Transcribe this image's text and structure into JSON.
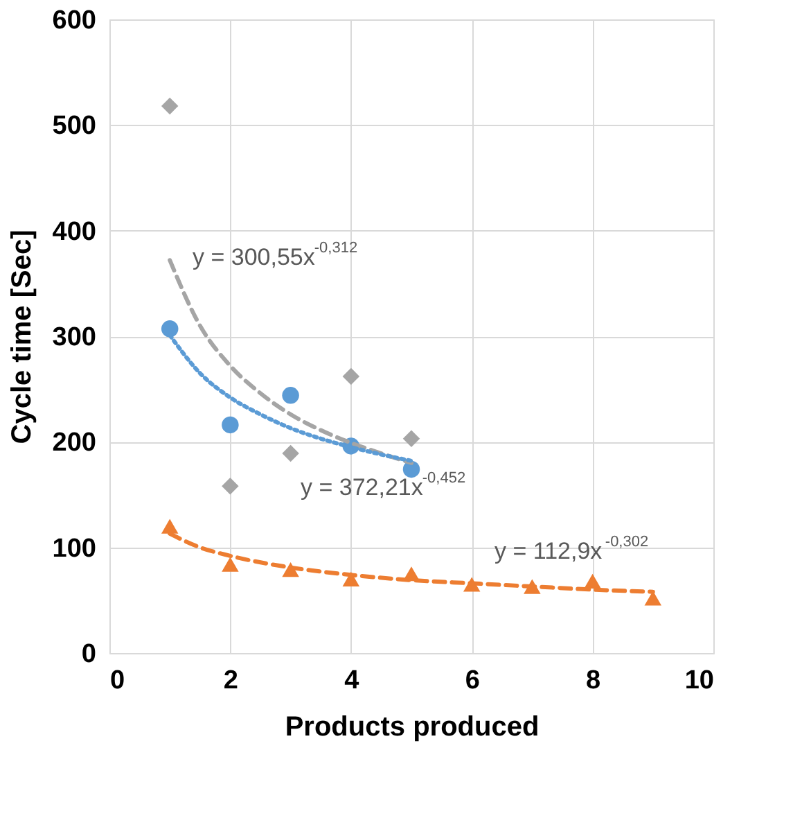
{
  "chart_data": {
    "type": "scatter",
    "xlabel": "Products produced",
    "ylabel": "Cycle time [Sec]",
    "xlim": [
      0,
      10
    ],
    "xticks": [
      0,
      2,
      4,
      6,
      8,
      10
    ],
    "ylim": [
      0,
      600
    ],
    "yticks": [
      0,
      100,
      200,
      300,
      400,
      500,
      600
    ],
    "grid": true,
    "series": [
      {
        "marker": "diamond",
        "color": "#a5a5a5",
        "x": [
          1,
          2,
          3,
          4,
          5
        ],
        "values": [
          518,
          158,
          189,
          262,
          203
        ]
      },
      {
        "marker": "circle",
        "color": "#5b9bd5",
        "x": [
          1,
          2,
          3,
          4,
          5
        ],
        "values": [
          307,
          216,
          244,
          196,
          174
        ]
      },
      {
        "marker": "triangle",
        "color": "#ed7d31",
        "x": [
          1,
          2,
          3,
          4,
          5,
          6,
          7,
          8,
          9
        ],
        "values": [
          120,
          84,
          79,
          70,
          75,
          65,
          63,
          68,
          52
        ]
      },
      {
        "type": "line",
        "line_style": "dashed",
        "color": "#a5a5a5",
        "x": [
          1,
          1.5,
          2,
          2.5,
          3,
          3.5,
          4,
          4.5,
          5
        ],
        "values": [
          372,
          310,
          272,
          246,
          226,
          211,
          199,
          189,
          180
        ]
      },
      {
        "type": "line",
        "line_style": "dotted",
        "color": "#5b9bd5",
        "x": [
          1,
          1.5,
          2,
          2.5,
          3,
          3.5,
          4,
          4.5,
          5
        ],
        "values": [
          301,
          265,
          242,
          226,
          213,
          203,
          195,
          188,
          182
        ]
      },
      {
        "type": "line",
        "line_style": "dashed",
        "color": "#ed7d31",
        "x": [
          1,
          1.5,
          2,
          3,
          4,
          5,
          6,
          7,
          8,
          9
        ],
        "values": [
          113,
          100,
          92,
          81,
          74,
          69,
          66,
          63,
          60,
          58
        ]
      }
    ],
    "annotations": [
      "y = 300,55x$^{-0,312}$",
      "y = 372,21x$^{-0,452}$",
      "y = 112,9x$^{-0,302}$"
    ]
  }
}
